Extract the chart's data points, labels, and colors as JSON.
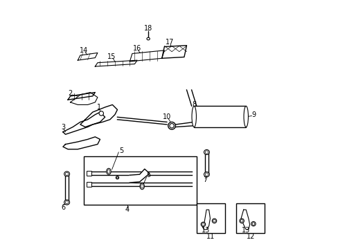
{
  "title": "",
  "bg_color": "#ffffff",
  "fig_width": 4.89,
  "fig_height": 3.6,
  "dpi": 100
}
